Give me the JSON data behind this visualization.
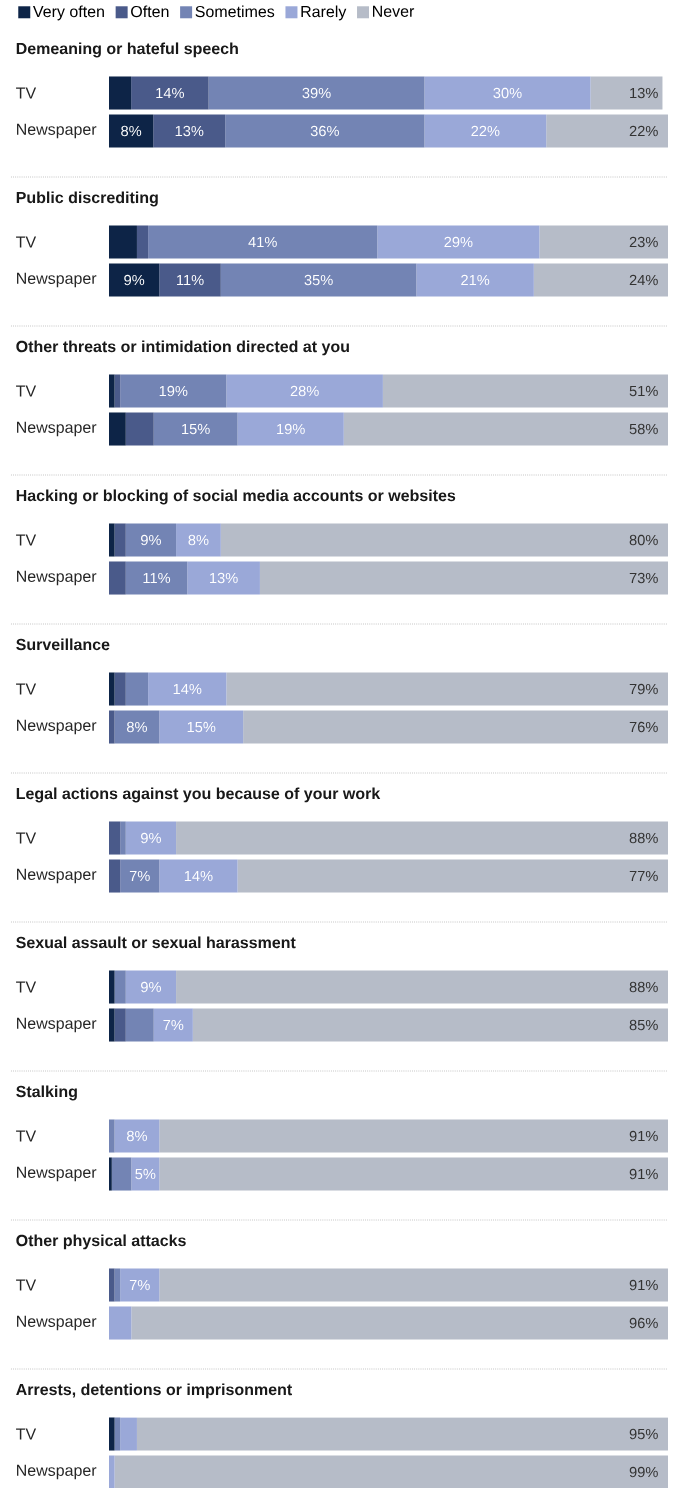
{
  "chart_data": [
    {
      "type": "bar",
      "orientation": "horizontal",
      "stacked": true,
      "title": "Demeaning or hateful speech",
      "categories": [
        "TV",
        "Newspaper"
      ],
      "tick_labels": "y",
      "legend": "top left",
      "series": [
        {
          "name": "Very often",
          "color": "#0d2447",
          "values": [
            4,
            8
          ],
          "value_labels": [
            null,
            "8%"
          ]
        },
        {
          "name": "Often",
          "color": "#4a5a8a",
          "values": [
            14,
            13
          ],
          "value_labels": [
            "14%",
            "13%"
          ]
        },
        {
          "name": "Sometimes",
          "color": "#7384b4",
          "values": [
            39,
            36
          ],
          "value_labels": [
            "39%",
            "36%"
          ]
        },
        {
          "name": "Rarely",
          "color": "#9aa8d8",
          "values": [
            30,
            22
          ],
          "value_labels": [
            "30%",
            "22%"
          ]
        },
        {
          "name": "Never",
          "color": "#b6bcc8",
          "values": [
            13,
            22
          ],
          "value_labels": [
            "13%",
            "22%"
          ]
        }
      ]
    },
    {
      "type": "bar",
      "orientation": "horizontal",
      "stacked": true,
      "title": "Public discrediting",
      "categories": [
        "TV",
        "Newspaper"
      ],
      "tick_labels": "y",
      "series": [
        {
          "color": "#0d2447",
          "values": [
            5,
            9
          ],
          "value_labels": [
            null,
            "9%"
          ]
        },
        {
          "color": "#4a5a8a",
          "values": [
            2,
            11
          ],
          "value_labels": [
            null,
            "11%"
          ]
        },
        {
          "color": "#7384b4",
          "values": [
            41,
            35
          ],
          "value_labels": [
            "41%",
            "35%"
          ]
        },
        {
          "color": "#9aa8d8",
          "values": [
            29,
            21
          ],
          "value_labels": [
            "29%",
            "21%"
          ]
        },
        {
          "color": "#b6bcc8",
          "values": [
            23,
            24
          ],
          "value_labels": [
            "23%",
            "24%"
          ]
        }
      ]
    },
    {
      "type": "bar",
      "orientation": "horizontal",
      "stacked": true,
      "title": "Other threats or intimidation directed at you",
      "categories": [
        "TV",
        "Newspaper"
      ],
      "tick_labels": "y",
      "series": [
        {
          "color": "#0d2447",
          "values": [
            1,
            3
          ],
          "value_labels": [
            null,
            null
          ]
        },
        {
          "color": "#4a5a8a",
          "values": [
            1,
            5
          ],
          "value_labels": [
            null,
            null
          ]
        },
        {
          "color": "#7384b4",
          "values": [
            19,
            15
          ],
          "value_labels": [
            "19%",
            "15%"
          ]
        },
        {
          "color": "#9aa8d8",
          "values": [
            28,
            19
          ],
          "value_labels": [
            "28%",
            "19%"
          ]
        },
        {
          "color": "#b6bcc8",
          "values": [
            51,
            58
          ],
          "value_labels": [
            "51%",
            "58%"
          ]
        }
      ]
    },
    {
      "type": "bar",
      "orientation": "horizontal",
      "stacked": true,
      "title": "Hacking or blocking of social media accounts or websites",
      "categories": [
        "TV",
        "Newspaper"
      ],
      "tick_labels": "y",
      "series": [
        {
          "color": "#0d2447",
          "values": [
            1,
            0
          ],
          "value_labels": [
            null,
            null
          ]
        },
        {
          "color": "#4a5a8a",
          "values": [
            2,
            3
          ],
          "value_labels": [
            null,
            null
          ]
        },
        {
          "color": "#7384b4",
          "values": [
            9,
            11
          ],
          "value_labels": [
            "9%",
            "11%"
          ]
        },
        {
          "color": "#9aa8d8",
          "values": [
            8,
            13
          ],
          "value_labels": [
            "8%",
            "13%"
          ]
        },
        {
          "color": "#b6bcc8",
          "values": [
            80,
            73
          ],
          "value_labels": [
            "80%",
            "73%"
          ]
        }
      ]
    },
    {
      "type": "bar",
      "orientation": "horizontal",
      "stacked": true,
      "title": "Surveillance",
      "categories": [
        "TV",
        "Newspaper"
      ],
      "tick_labels": "y",
      "series": [
        {
          "color": "#0d2447",
          "values": [
            1,
            0
          ],
          "value_labels": [
            null,
            null
          ]
        },
        {
          "color": "#4a5a8a",
          "values": [
            2,
            1
          ],
          "value_labels": [
            null,
            null
          ]
        },
        {
          "color": "#7384b4",
          "values": [
            4,
            8
          ],
          "value_labels": [
            null,
            "8%"
          ]
        },
        {
          "color": "#9aa8d8",
          "values": [
            14,
            15
          ],
          "value_labels": [
            "14%",
            "15%"
          ]
        },
        {
          "color": "#b6bcc8",
          "values": [
            79,
            76
          ],
          "value_labels": [
            "79%",
            "76%"
          ]
        }
      ]
    },
    {
      "type": "bar",
      "orientation": "horizontal",
      "stacked": true,
      "title": "Legal actions against you because of your work",
      "categories": [
        "TV",
        "Newspaper"
      ],
      "tick_labels": "y",
      "series": [
        {
          "color": "#0d2447",
          "values": [
            0,
            0
          ],
          "value_labels": [
            null,
            null
          ]
        },
        {
          "color": "#4a5a8a",
          "values": [
            2,
            2
          ],
          "value_labels": [
            null,
            null
          ]
        },
        {
          "color": "#7384b4",
          "values": [
            1,
            7
          ],
          "value_labels": [
            null,
            "7%"
          ]
        },
        {
          "color": "#9aa8d8",
          "values": [
            9,
            14
          ],
          "value_labels": [
            "9%",
            "14%"
          ]
        },
        {
          "color": "#b6bcc8",
          "values": [
            88,
            77
          ],
          "value_labels": [
            "88%",
            "77%"
          ]
        }
      ]
    },
    {
      "type": "bar",
      "orientation": "horizontal",
      "stacked": true,
      "title": "Sexual assault or sexual harassment",
      "categories": [
        "TV",
        "Newspaper"
      ],
      "tick_labels": "y",
      "series": [
        {
          "color": "#0d2447",
          "values": [
            1,
            1
          ],
          "value_labels": [
            null,
            null
          ]
        },
        {
          "color": "#4a5a8a",
          "values": [
            0,
            2
          ],
          "value_labels": [
            null,
            null
          ]
        },
        {
          "color": "#7384b4",
          "values": [
            2,
            5
          ],
          "value_labels": [
            null,
            null
          ]
        },
        {
          "color": "#9aa8d8",
          "values": [
            9,
            7
          ],
          "value_labels": [
            "9%",
            "7%"
          ]
        },
        {
          "color": "#b6bcc8",
          "values": [
            88,
            85
          ],
          "value_labels": [
            "88%",
            "85%"
          ]
        }
      ]
    },
    {
      "type": "bar",
      "orientation": "horizontal",
      "stacked": true,
      "title": "Stalking",
      "categories": [
        "TV",
        "Newspaper"
      ],
      "tick_labels": "y",
      "series": [
        {
          "color": "#0d2447",
          "values": [
            0,
            0.5
          ],
          "value_labels": [
            null,
            null
          ]
        },
        {
          "color": "#4a5a8a",
          "values": [
            0,
            0
          ],
          "value_labels": [
            null,
            null
          ]
        },
        {
          "color": "#7384b4",
          "values": [
            1,
            3.5
          ],
          "value_labels": [
            null,
            null
          ]
        },
        {
          "color": "#9aa8d8",
          "values": [
            8,
            5
          ],
          "value_labels": [
            "8%",
            "5%"
          ]
        },
        {
          "color": "#b6bcc8",
          "values": [
            91,
            91
          ],
          "value_labels": [
            "91%",
            "91%"
          ]
        }
      ]
    },
    {
      "type": "bar",
      "orientation": "horizontal",
      "stacked": true,
      "title": "Other physical attacks",
      "categories": [
        "TV",
        "Newspaper"
      ],
      "tick_labels": "y",
      "series": [
        {
          "color": "#0d2447",
          "values": [
            0,
            0
          ],
          "value_labels": [
            null,
            null
          ]
        },
        {
          "color": "#4a5a8a",
          "values": [
            1,
            0
          ],
          "value_labels": [
            null,
            null
          ]
        },
        {
          "color": "#7384b4",
          "values": [
            1,
            0
          ],
          "value_labels": [
            null,
            null
          ]
        },
        {
          "color": "#9aa8d8",
          "values": [
            7,
            4
          ],
          "value_labels": [
            "7%",
            null
          ]
        },
        {
          "color": "#b6bcc8",
          "values": [
            91,
            96
          ],
          "value_labels": [
            "91%",
            "96%"
          ]
        }
      ]
    },
    {
      "type": "bar",
      "orientation": "horizontal",
      "stacked": true,
      "title": "Arrests, detentions or imprisonment",
      "categories": [
        "TV",
        "Newspaper"
      ],
      "tick_labels": "y",
      "series": [
        {
          "color": "#0d2447",
          "values": [
            1,
            0
          ],
          "value_labels": [
            null,
            null
          ]
        },
        {
          "color": "#4a5a8a",
          "values": [
            0,
            0
          ],
          "value_labels": [
            null,
            null
          ]
        },
        {
          "color": "#7384b4",
          "values": [
            1,
            0
          ],
          "value_labels": [
            null,
            null
          ]
        },
        {
          "color": "#9aa8d8",
          "values": [
            3,
            1
          ],
          "value_labels": [
            null,
            null
          ]
        },
        {
          "color": "#b6bcc8",
          "values": [
            95,
            99
          ],
          "value_labels": [
            "95%",
            "99%"
          ]
        }
      ]
    }
  ]
}
